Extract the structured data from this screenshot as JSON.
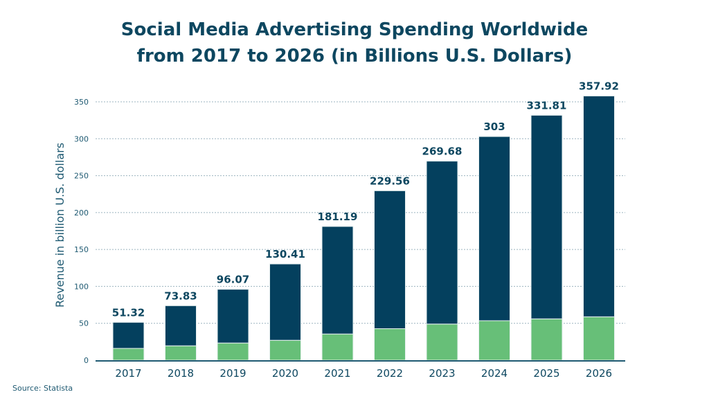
{
  "chart_data": {
    "type": "bar",
    "stacked": true,
    "title_lines": [
      "Social Media Advertising Spending Worldwide",
      "from 2017 to 2026 (in Billions U.S. Dollars)"
    ],
    "xlabel": "",
    "ylabel": "Revenue in billion U.S. dollars",
    "ylim": [
      0,
      350
    ],
    "yticks": [
      0,
      50,
      100,
      150,
      200,
      250,
      300,
      350
    ],
    "grid": true,
    "categories": [
      "2017",
      "2018",
      "2019",
      "2020",
      "2021",
      "2022",
      "2023",
      "2024",
      "2025",
      "2026"
    ],
    "totals": [
      51.32,
      73.83,
      96.07,
      130.41,
      181.19,
      229.56,
      269.68,
      303,
      331.81,
      357.92
    ],
    "total_labels": [
      "51.32",
      "73.83",
      "96.07",
      "130.41",
      "181.19",
      "229.56",
      "269.68",
      "303",
      "331.81",
      "357.92"
    ],
    "series": [
      {
        "values": [
          16,
          19.5,
          23.3,
          27,
          35.5,
          42.7,
          49,
          53.5,
          56,
          58.8
        ],
        "color": "#67bf78"
      },
      {
        "values": [
          35.32,
          54.33,
          72.77,
          103.41,
          145.69,
          186.86,
          220.68,
          249.5,
          275.81,
          299.12
        ],
        "color": "#04405e"
      }
    ]
  },
  "source": "Source: Statista"
}
